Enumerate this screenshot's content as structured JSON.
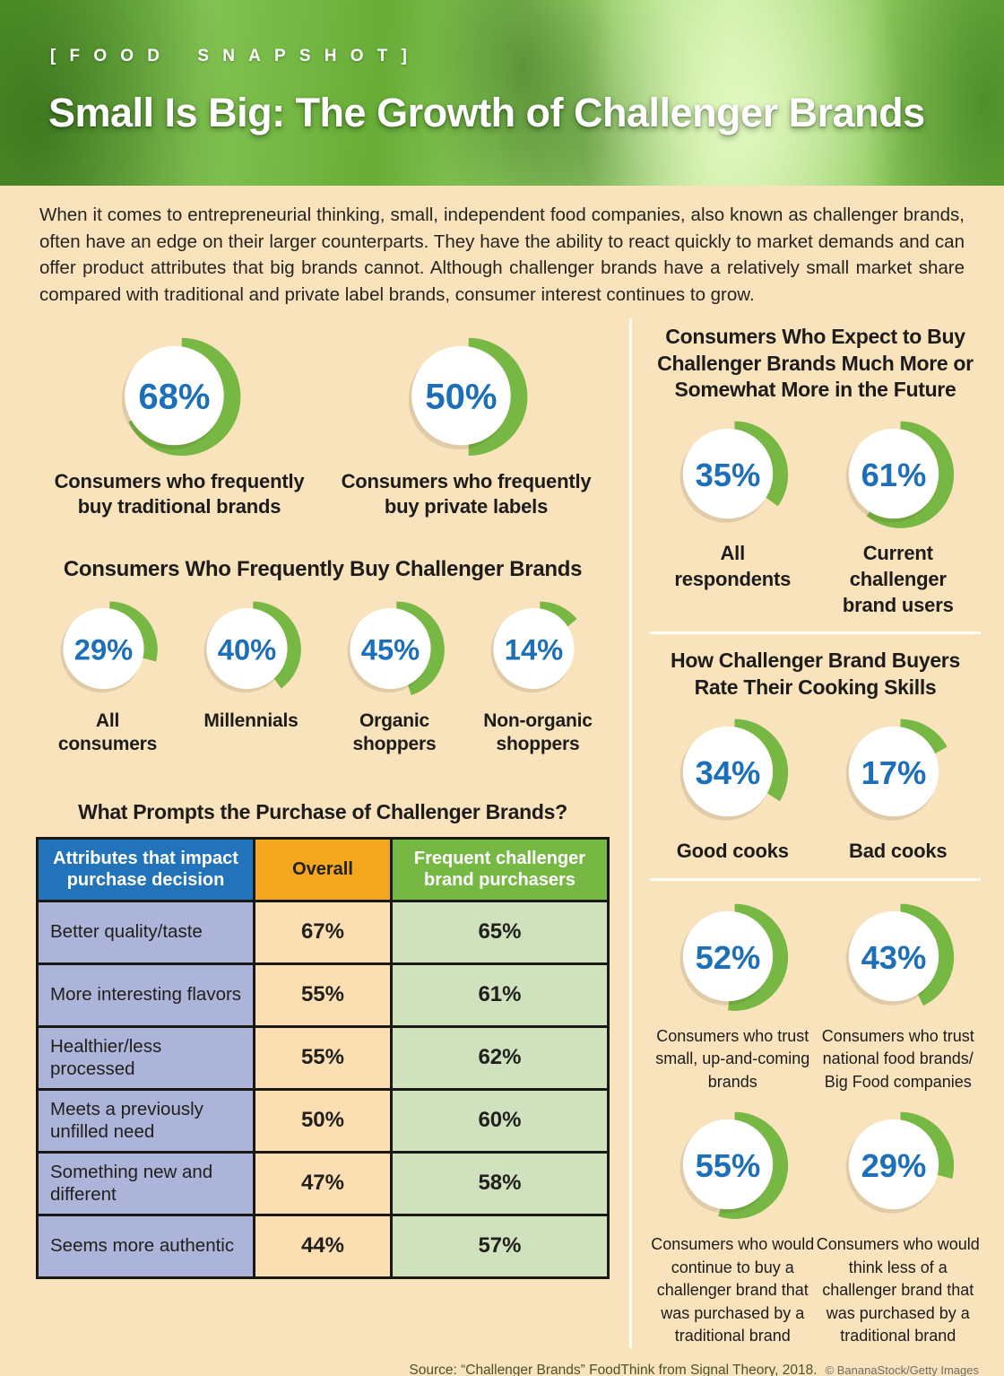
{
  "header": {
    "kicker": "[FOOD SNAPSHOT]",
    "title": "Small Is Big: The Growth of Challenger Brands"
  },
  "intro": "When it comes to entrepreneurial thinking, small, independent food companies, also known as challenger brands, often have an edge on their larger counterparts. They have the ability to react quickly to market demands and can offer product attributes that big brands cannot. Although challenger brands have a relatively small market share compared with traditional and private label brands, consumer interest continues to grow.",
  "colors": {
    "green": "#76b843",
    "blue_percent": "#1c6fb8",
    "table_header_blue": "#2273b9",
    "table_header_orange": "#f2a71f",
    "table_header_green": "#76b843",
    "table_cell_lavender": "#adb4da",
    "table_cell_peach": "#fbdfb2",
    "table_cell_green": "#cfe2bd",
    "background_cream": "#f9e3bd",
    "divider_white": "#fffdf4"
  },
  "left": {
    "top_donuts": [
      {
        "value": 68,
        "label": "Consumers who frequently buy traditional brands"
      },
      {
        "value": 50,
        "label": "Consumers who frequently buy private labels"
      }
    ],
    "frequent": {
      "heading": "Consumers Who Frequently Buy Challenger Brands",
      "donuts": [
        {
          "value": 29,
          "label": "All consumers"
        },
        {
          "value": 40,
          "label": "Millennials"
        },
        {
          "value": 45,
          "label": "Organic shoppers"
        },
        {
          "value": 14,
          "label": "Non-organic shoppers"
        }
      ]
    },
    "table": {
      "title": "What Prompts the Purchase of Challenger Brands?",
      "headers": [
        "Attributes that impact purchase decision",
        "Overall",
        "Frequent challenger brand purchasers"
      ],
      "rows": [
        [
          "Better quality/taste",
          "67%",
          "65%"
        ],
        [
          "More interesting flavors",
          "55%",
          "61%"
        ],
        [
          "Healthier/less processed",
          "55%",
          "62%"
        ],
        [
          "Meets a previously unfilled need",
          "50%",
          "60%"
        ],
        [
          "Something new and different",
          "47%",
          "58%"
        ],
        [
          "Seems more authentic",
          "44%",
          "57%"
        ]
      ]
    }
  },
  "right": {
    "future": {
      "heading": "Consumers Who Expect to Buy Challenger Brands Much More or Somewhat More in the Future",
      "donuts": [
        {
          "value": 35,
          "label": "All respondents"
        },
        {
          "value": 61,
          "label": "Current challenger brand users"
        }
      ]
    },
    "cooking": {
      "heading": "How Challenger Brand Buyers Rate Their Cooking Skills",
      "donuts": [
        {
          "value": 34,
          "label": "Good cooks"
        },
        {
          "value": 17,
          "label": "Bad cooks"
        }
      ]
    },
    "trust": {
      "donuts": [
        {
          "value": 52,
          "label": "Consumers who trust small, up-and-coming brands"
        },
        {
          "value": 43,
          "label": "Consumers who trust national food brands/ Big Food companies"
        },
        {
          "value": 55,
          "label": "Consumers who would continue to buy a challenger brand that was purchased by a traditional brand"
        },
        {
          "value": 29,
          "label": "Consumers who would think less of a challenger brand that was purchased by a traditional brand"
        }
      ]
    }
  },
  "footer": {
    "source": "Source: “Challenger Brands” FoodThink from Signal Theory, 2018.",
    "credit": "© BananaStock/Getty Images"
  },
  "chart_data": [
    {
      "type": "pie",
      "title": "",
      "unit": "%",
      "points": [
        {
          "label": "Consumers who frequently buy traditional brands",
          "value": 68
        },
        {
          "label": "Consumers who frequently buy private labels",
          "value": 50
        }
      ]
    },
    {
      "type": "pie",
      "title": "Consumers Who Frequently Buy Challenger Brands",
      "unit": "%",
      "points": [
        {
          "label": "All consumers",
          "value": 29
        },
        {
          "label": "Millennials",
          "value": 40
        },
        {
          "label": "Organic shoppers",
          "value": 45
        },
        {
          "label": "Non-organic shoppers",
          "value": 14
        }
      ]
    },
    {
      "type": "table",
      "title": "What Prompts the Purchase of Challenger Brands?",
      "columns": [
        "Attributes that impact purchase decision",
        "Overall",
        "Frequent challenger brand purchasers"
      ],
      "rows": [
        [
          "Better quality/taste",
          "67%",
          "65%"
        ],
        [
          "More interesting flavors",
          "55%",
          "61%"
        ],
        [
          "Healthier/less processed",
          "55%",
          "62%"
        ],
        [
          "Meets a previously unfilled need",
          "50%",
          "60%"
        ],
        [
          "Something new and different",
          "47%",
          "58%"
        ],
        [
          "Seems more authentic",
          "44%",
          "57%"
        ]
      ]
    },
    {
      "type": "pie",
      "title": "Consumers Who Expect to Buy Challenger Brands Much More or Somewhat More in the Future",
      "unit": "%",
      "points": [
        {
          "label": "All respondents",
          "value": 35
        },
        {
          "label": "Current challenger brand users",
          "value": 61
        }
      ]
    },
    {
      "type": "pie",
      "title": "How Challenger Brand Buyers Rate Their Cooking Skills",
      "unit": "%",
      "points": [
        {
          "label": "Good cooks",
          "value": 34
        },
        {
          "label": "Bad cooks",
          "value": 17
        }
      ]
    },
    {
      "type": "pie",
      "title": "",
      "unit": "%",
      "points": [
        {
          "label": "Consumers who trust small, up-and-coming brands",
          "value": 52
        },
        {
          "label": "Consumers who trust national food brands/ Big Food companies",
          "value": 43
        },
        {
          "label": "Consumers who would continue to buy a challenger brand that was purchased by a traditional brand",
          "value": 55
        },
        {
          "label": "Consumers who would think less of a challenger brand that was purchased by a traditional brand",
          "value": 29
        }
      ]
    }
  ]
}
